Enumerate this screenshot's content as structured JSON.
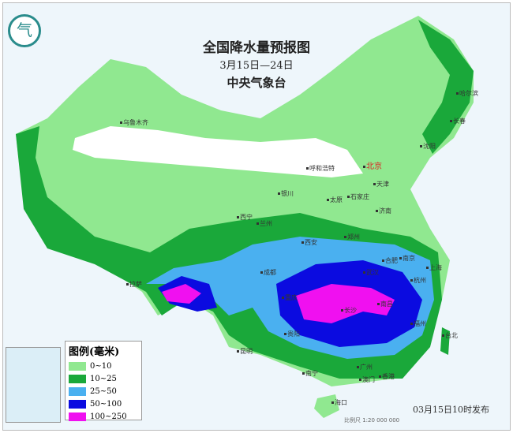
{
  "title": "全国降水量预报图",
  "date_range": "3月15日—24日",
  "issuer": "中央气象台",
  "legend": {
    "title": "图例(毫米)",
    "items": [
      {
        "label": "0~10",
        "color": "#90e890"
      },
      {
        "label": "10~25",
        "color": "#1aa83a"
      },
      {
        "label": "25~50",
        "color": "#4ab0f0"
      },
      {
        "label": "50~100",
        "color": "#0b0be0"
      },
      {
        "label": "100~250",
        "color": "#f010f0"
      }
    ]
  },
  "cities": [
    "乌鲁木齐",
    "哈尔滨",
    "长春",
    "沈阳",
    "呼和浩特",
    "北京",
    "天津",
    "银川",
    "太原",
    "石家庄",
    "济南",
    "西宁",
    "兰州",
    "郑州",
    "西安",
    "合肥",
    "南京",
    "上海",
    "杭州",
    "武汉",
    "成都",
    "重庆",
    "长沙",
    "南昌",
    "福州",
    "贵阳",
    "昆明",
    "拉萨",
    "台北",
    "南宁",
    "广州",
    "澳门",
    "香港",
    "海口"
  ],
  "published": "03月15日10时发布",
  "scale": "比例尺 1:20 000 000"
}
